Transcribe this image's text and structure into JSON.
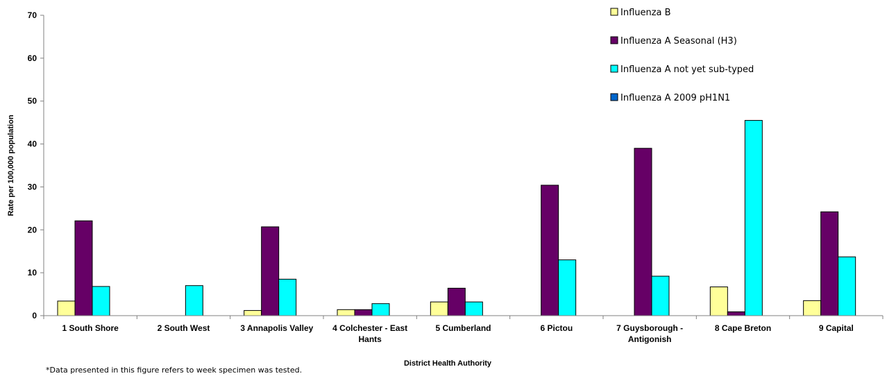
{
  "chart_data": {
    "type": "bar",
    "title": "",
    "xlabel": "District Health Authority",
    "ylabel": "Rate per 100,000 population",
    "ylim": [
      0,
      70
    ],
    "yticks": [
      0,
      10,
      20,
      30,
      40,
      50,
      60,
      70
    ],
    "grid": false,
    "legend_position": "top-right",
    "categories": [
      [
        "1 South Shore"
      ],
      [
        "2 South West"
      ],
      [
        "3 Annapolis Valley"
      ],
      [
        "4 Colchester - East",
        "Hants"
      ],
      [
        "5 Cumberland"
      ],
      [
        "6 Pictou"
      ],
      [
        "7 Guysborough -",
        "Antigonish"
      ],
      [
        "8 Cape Breton"
      ],
      [
        "9 Capital"
      ]
    ],
    "series": [
      {
        "name": "Influenza B",
        "color": "#ffff99",
        "values": [
          3.4,
          0,
          1.2,
          1.4,
          3.2,
          0,
          0,
          6.7,
          3.5
        ]
      },
      {
        "name": "Influenza A Seasonal (H3)",
        "color": "#660066",
        "values": [
          22.1,
          0,
          20.7,
          1.4,
          6.4,
          30.4,
          39.0,
          0.9,
          24.2
        ]
      },
      {
        "name": "Influenza A not yet sub-typed",
        "color": "#00ffff",
        "values": [
          6.8,
          7.0,
          8.5,
          2.8,
          3.2,
          13.0,
          9.2,
          45.5,
          13.7
        ]
      },
      {
        "name": "Influenza A 2009 pH1N1",
        "color": "#0066cc",
        "values": [
          0,
          0,
          0,
          0,
          0,
          0,
          0,
          0,
          0
        ]
      }
    ],
    "footnote": "*Data presented in this figure refers to week specimen was tested."
  }
}
